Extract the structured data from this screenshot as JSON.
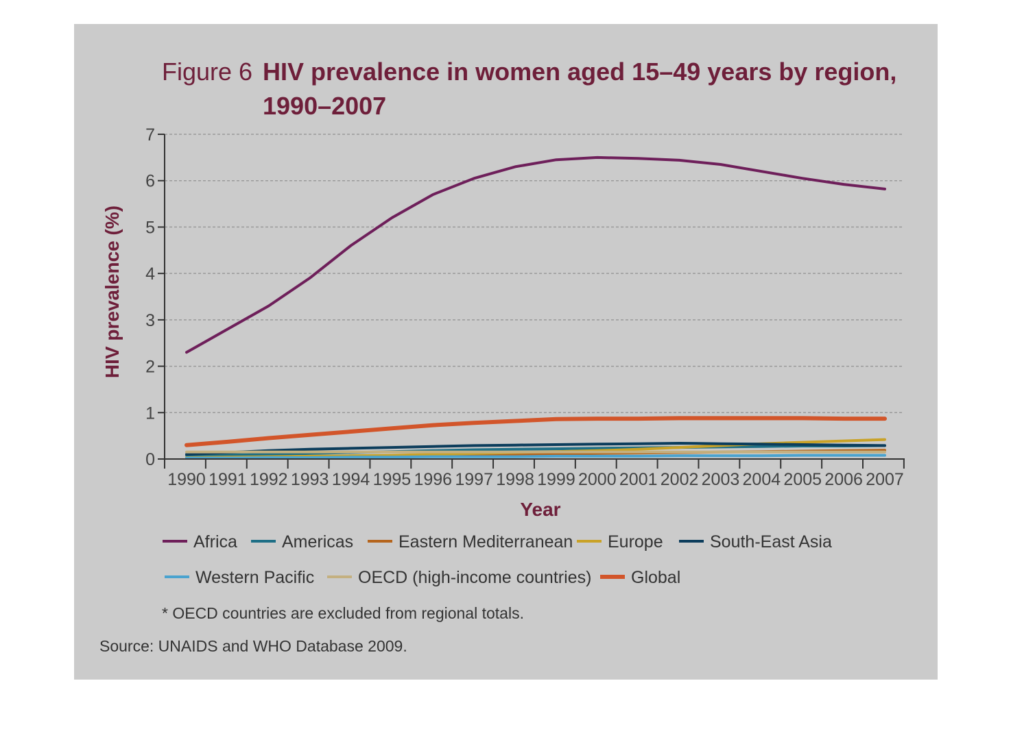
{
  "figure": {
    "label": "Figure 6",
    "title_line1": "HIV prevalence in women aged 15–49 years by region,",
    "title_line2": "1990–2007"
  },
  "chart_data": {
    "type": "line",
    "title": "HIV prevalence in women aged 15–49 years by region, 1990–2007",
    "xlabel": "Year",
    "ylabel": "HIV prevalence (%)",
    "ylim": [
      0,
      7
    ],
    "yticks": [
      "0",
      "1",
      "2",
      "3",
      "4",
      "5",
      "6",
      "7"
    ],
    "grid": true,
    "categories": [
      "1990",
      "1991",
      "1992",
      "1993",
      "1994",
      "1995",
      "1996",
      "1997",
      "1998",
      "1999",
      "2000",
      "2001",
      "2002",
      "2003",
      "2004",
      "2005",
      "2006",
      "2007"
    ],
    "series": [
      {
        "name": "Africa",
        "color": "#6e1f5a",
        "values": [
          2.3,
          2.8,
          3.3,
          3.9,
          4.6,
          5.2,
          5.7,
          6.05,
          6.3,
          6.45,
          6.5,
          6.48,
          6.44,
          6.35,
          6.2,
          6.05,
          5.92,
          5.82
        ]
      },
      {
        "name": "Americas",
        "color": "#1e6f86",
        "values": [
          0.08,
          0.09,
          0.1,
          0.12,
          0.14,
          0.16,
          0.18,
          0.2,
          0.21,
          0.22,
          0.23,
          0.24,
          0.25,
          0.26,
          0.27,
          0.28,
          0.28,
          0.29
        ]
      },
      {
        "name": "Eastern Mediterranean",
        "color": "#b5651d",
        "values": [
          0.02,
          0.03,
          0.04,
          0.05,
          0.06,
          0.07,
          0.08,
          0.09,
          0.1,
          0.11,
          0.12,
          0.13,
          0.14,
          0.15,
          0.16,
          0.17,
          0.18,
          0.19
        ]
      },
      {
        "name": "Europe",
        "color": "#c9a227",
        "values": [
          0.03,
          0.04,
          0.05,
          0.06,
          0.07,
          0.08,
          0.1,
          0.12,
          0.14,
          0.16,
          0.18,
          0.21,
          0.25,
          0.29,
          0.33,
          0.36,
          0.39,
          0.42
        ]
      },
      {
        "name": "South-East Asia",
        "color": "#0c3d5c",
        "values": [
          0.1,
          0.14,
          0.18,
          0.21,
          0.23,
          0.25,
          0.27,
          0.29,
          0.3,
          0.31,
          0.32,
          0.33,
          0.34,
          0.33,
          0.32,
          0.31,
          0.3,
          0.29
        ]
      },
      {
        "name": "Western Pacific",
        "color": "#4aa3cf",
        "values": [
          0.02,
          0.02,
          0.03,
          0.03,
          0.04,
          0.04,
          0.05,
          0.05,
          0.05,
          0.06,
          0.06,
          0.06,
          0.07,
          0.07,
          0.07,
          0.08,
          0.08,
          0.08
        ]
      },
      {
        "name": "OECD (high-income countries)",
        "color": "#c4b080",
        "values": [
          0.15,
          0.15,
          0.15,
          0.15,
          0.15,
          0.15,
          0.15,
          0.15,
          0.15,
          0.15,
          0.15,
          0.15,
          0.15,
          0.15,
          0.15,
          0.15,
          0.15,
          0.15
        ]
      },
      {
        "name": "Global",
        "color": "#d2552a",
        "values": [
          0.3,
          0.37,
          0.45,
          0.52,
          0.59,
          0.66,
          0.73,
          0.78,
          0.82,
          0.86,
          0.87,
          0.87,
          0.88,
          0.88,
          0.88,
          0.88,
          0.87,
          0.87
        ]
      }
    ]
  },
  "footnote": "* OECD countries are excluded from regional totals.",
  "source": "Source: UNAIDS and WHO Database 2009."
}
